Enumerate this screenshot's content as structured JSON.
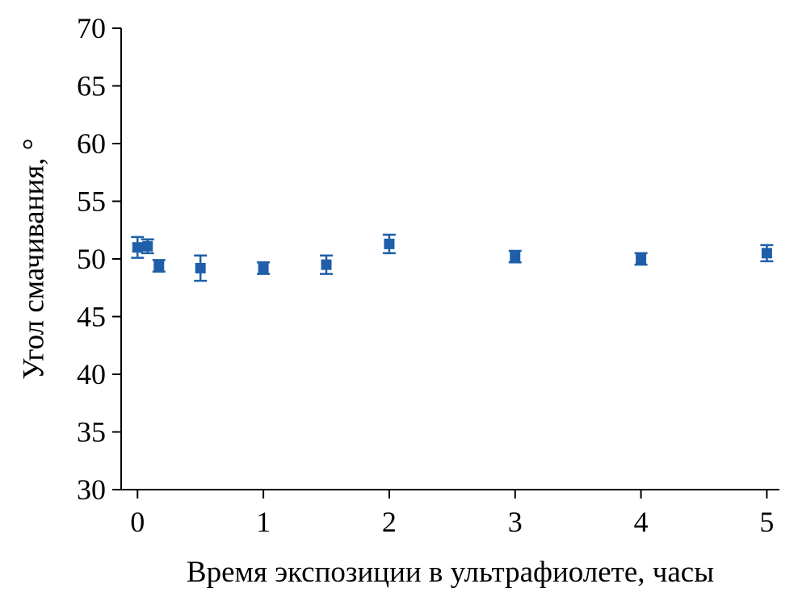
{
  "chart_data": {
    "type": "scatter",
    "title": "",
    "xlabel": "Время экспозиции в ультрафиолете, часы",
    "ylabel": "Угол смачивания, °",
    "xlim": [
      -0.13,
      5.1
    ],
    "ylim": [
      30,
      70
    ],
    "xticks": [
      0,
      1,
      2,
      3,
      4,
      5
    ],
    "yticks": [
      30,
      35,
      40,
      45,
      50,
      55,
      60,
      65,
      70
    ],
    "grid": false,
    "legend": false,
    "marker": "square",
    "marker_color": "#1f5fa9",
    "axis_color": "#000000",
    "points": [
      {
        "x": 0.0,
        "y": 51.0,
        "err": 0.9
      },
      {
        "x": 0.08,
        "y": 51.1,
        "err": 0.6
      },
      {
        "x": 0.17,
        "y": 49.4,
        "err": 0.5
      },
      {
        "x": 0.5,
        "y": 49.2,
        "err": 1.1
      },
      {
        "x": 1.0,
        "y": 49.2,
        "err": 0.5
      },
      {
        "x": 1.5,
        "y": 49.5,
        "err": 0.8
      },
      {
        "x": 2.0,
        "y": 51.3,
        "err": 0.8
      },
      {
        "x": 3.0,
        "y": 50.2,
        "err": 0.5
      },
      {
        "x": 4.0,
        "y": 50.0,
        "err": 0.5
      },
      {
        "x": 5.0,
        "y": 50.5,
        "err": 0.7
      }
    ]
  }
}
